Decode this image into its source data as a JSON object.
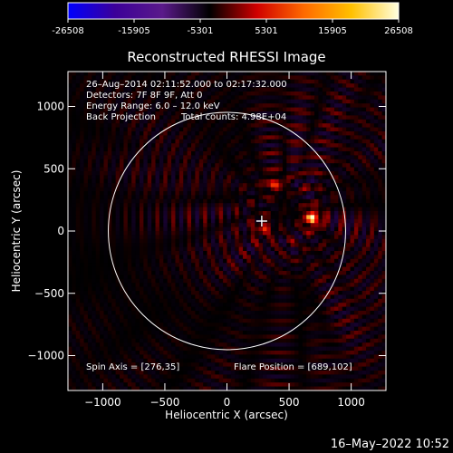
{
  "colorbar": {
    "ticks": [
      "-26508",
      "-15905",
      "-5301",
      "5301",
      "15905",
      "26508"
    ],
    "stops": [
      "#0000ff",
      "#3c0099",
      "#5a1a8a",
      "#000000",
      "#d00000",
      "#ff6a00",
      "#ffc000",
      "#ffffe0"
    ]
  },
  "chart_data": {
    "type": "heatmap",
    "title": "Reconstructed RHESSI Image",
    "xlabel": "Heliocentric X (arcsec)",
    "ylabel": "Heliocentric Y (arcsec)",
    "xlim": [
      -1280,
      1280
    ],
    "ylim": [
      -1280,
      1280
    ],
    "xticks": [
      -1000,
      -500,
      0,
      500,
      1000
    ],
    "yticks": [
      -1000,
      -500,
      0,
      500,
      1000
    ],
    "xtick_labels": [
      "−1000",
      "−500",
      "0",
      "500",
      "1000"
    ],
    "ytick_labels": [
      "−1000",
      "−500",
      "0",
      "500",
      "1000"
    ],
    "value_range": [
      -26508,
      26508
    ],
    "solar_radius": 955,
    "center_marker": [
      280,
      80
    ],
    "flare_position": [
      689,
      102
    ],
    "sources": [
      {
        "x": 689,
        "y": 102,
        "peak": 26508
      },
      {
        "x": 380,
        "y": 380,
        "peak": 14000
      },
      {
        "x": 290,
        "y": 10,
        "peak": 12000
      }
    ],
    "annotations": {
      "time_range": "26–Aug–2014 02:11:52.000 to 02:17:32.000",
      "detectors": "Detectors: 7F 8F 9F, Att 0",
      "energy": "Energy Range: 6.0 – 12.0 keV",
      "method": "Back Projection",
      "counts": "Total counts: 4.98E+04",
      "spin_axis": "Spin Axis = [276,35]",
      "flare_label": "Flare Position = [689,102]"
    }
  },
  "footer_date": "16–May–2022 10:52"
}
